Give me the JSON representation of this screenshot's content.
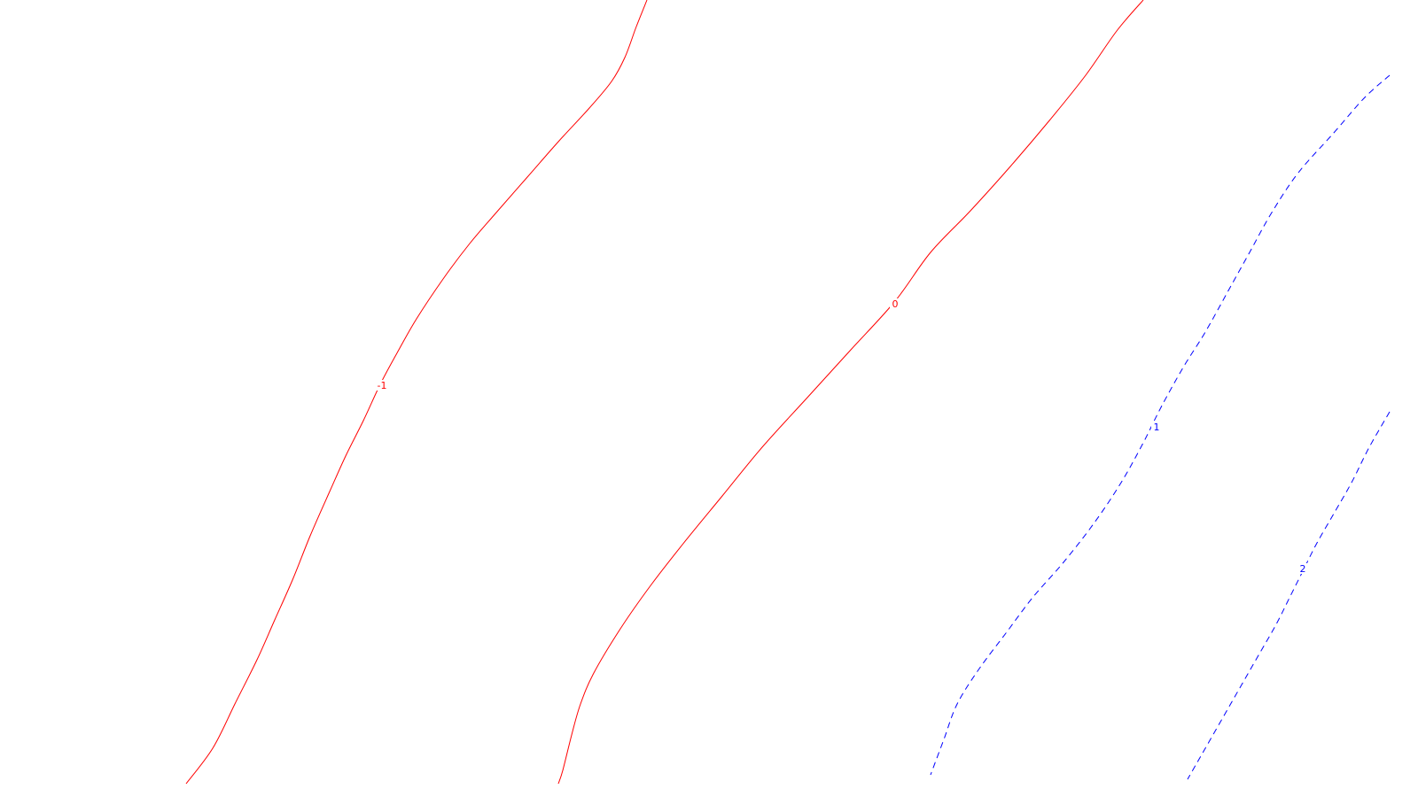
{
  "chart_data": {
    "type": "contour",
    "title": "",
    "xlabel": "",
    "ylabel": "",
    "grid": false,
    "legend": "none",
    "colors": {
      "negative": "#ff0000",
      "zero": "#ff0000",
      "positive": "#0000ff"
    },
    "levels": [
      {
        "level": -1,
        "label": "-1",
        "style": "solid",
        "color": "#ff0000",
        "points": [
          [
            730,
            0
          ],
          [
            718,
            30
          ],
          [
            705,
            65
          ],
          [
            690,
            92
          ],
          [
            665,
            122
          ],
          [
            630,
            160
          ],
          [
            595,
            200
          ],
          [
            560,
            240
          ],
          [
            530,
            275
          ],
          [
            500,
            315
          ],
          [
            470,
            360
          ],
          [
            450,
            395
          ],
          [
            430,
            432
          ],
          [
            410,
            475
          ],
          [
            390,
            515
          ],
          [
            372,
            555
          ],
          [
            350,
            605
          ],
          [
            330,
            655
          ],
          [
            310,
            700
          ],
          [
            290,
            745
          ],
          [
            265,
            795
          ],
          [
            240,
            845
          ],
          [
            210,
            885
          ]
        ],
        "label_point": [
          431,
          437
        ]
      },
      {
        "level": 0,
        "label": "0",
        "style": "solid",
        "color": "#ff0000",
        "points": [
          [
            1290,
            0
          ],
          [
            1260,
            35
          ],
          [
            1225,
            85
          ],
          [
            1185,
            135
          ],
          [
            1140,
            188
          ],
          [
            1095,
            238
          ],
          [
            1050,
            285
          ],
          [
            1010,
            340
          ],
          [
            960,
            395
          ],
          [
            910,
            450
          ],
          [
            860,
            505
          ],
          [
            815,
            560
          ],
          [
            770,
            615
          ],
          [
            735,
            660
          ],
          [
            700,
            710
          ],
          [
            670,
            760
          ],
          [
            655,
            795
          ],
          [
            645,
            830
          ],
          [
            635,
            870
          ],
          [
            630,
            885
          ]
        ],
        "label_point": [
          1010,
          345
        ]
      },
      {
        "level": 1,
        "label": "1",
        "style": "dashed",
        "color": "#0000ff",
        "points": [
          [
            1568,
            85
          ],
          [
            1540,
            110
          ],
          [
            1505,
            150
          ],
          [
            1465,
            195
          ],
          [
            1435,
            240
          ],
          [
            1410,
            285
          ],
          [
            1385,
            330
          ],
          [
            1360,
            375
          ],
          [
            1335,
            415
          ],
          [
            1310,
            460
          ],
          [
            1290,
            500
          ],
          [
            1265,
            545
          ],
          [
            1235,
            590
          ],
          [
            1200,
            635
          ],
          [
            1165,
            675
          ],
          [
            1135,
            715
          ],
          [
            1105,
            755
          ],
          [
            1080,
            795
          ],
          [
            1065,
            835
          ],
          [
            1050,
            875
          ]
        ],
        "label_point": [
          1305,
          484
        ]
      },
      {
        "level": 2,
        "label": "2",
        "style": "dashed",
        "color": "#0000ff",
        "points": [
          [
            1568,
            465
          ],
          [
            1545,
            505
          ],
          [
            1525,
            545
          ],
          [
            1505,
            580
          ],
          [
            1485,
            615
          ],
          [
            1470,
            645
          ],
          [
            1455,
            675
          ],
          [
            1440,
            705
          ],
          [
            1420,
            740
          ],
          [
            1400,
            775
          ],
          [
            1380,
            810
          ],
          [
            1360,
            845
          ],
          [
            1340,
            880
          ]
        ],
        "label_point": [
          1470,
          644
        ]
      }
    ]
  }
}
